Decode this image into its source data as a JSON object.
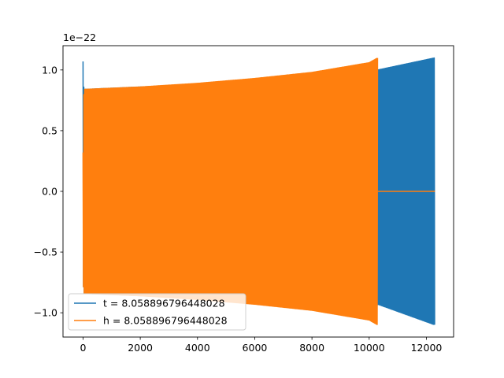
{
  "chart_data": {
    "type": "line",
    "title": "",
    "xlabel": "",
    "ylabel": "",
    "y_offset_label": "1e−22",
    "xlim": [
      -700,
      12950
    ],
    "ylim": [
      -1.2,
      1.2
    ],
    "xticks": [
      0,
      2000,
      4000,
      6000,
      8000,
      10000,
      12000
    ],
    "xtick_labels": [
      "0",
      "2000",
      "4000",
      "6000",
      "8000",
      "10000",
      "12000"
    ],
    "yticks": [
      -1.0,
      -0.5,
      0.0,
      0.5,
      1.0
    ],
    "ytick_labels": [
      "−1.0",
      "−0.5",
      "0.0",
      "0.5",
      "1.0"
    ],
    "grid": false,
    "legend_position": "lower-left",
    "series": [
      {
        "name": "t = 8.058896796448028",
        "color": "#1f77b4",
        "envelope": {
          "x": [
            0,
            30,
            2000,
            4000,
            6000,
            8000,
            10000,
            10300,
            12300
          ],
          "upper": [
            1.07,
            0.84,
            0.86,
            0.88,
            0.92,
            0.97,
            1.05,
            1.0,
            1.1
          ],
          "lower": [
            -0.74,
            -0.84,
            -0.86,
            -0.88,
            -0.92,
            -0.97,
            -1.05,
            -0.93,
            -1.1
          ]
        },
        "end_x": 12300
      },
      {
        "name": "h = 8.058896796448028",
        "color": "#ff7f0e",
        "envelope": {
          "x": [
            0,
            30,
            2000,
            4000,
            6000,
            8000,
            10000,
            10300
          ],
          "upper": [
            0.32,
            0.84,
            0.86,
            0.89,
            0.93,
            0.98,
            1.06,
            1.1
          ],
          "lower": [
            -0.74,
            -0.84,
            -0.86,
            -0.89,
            -0.93,
            -0.98,
            -1.06,
            -1.1
          ]
        },
        "flat_after": {
          "x": [
            10300,
            12300
          ],
          "y": 0.0
        }
      }
    ]
  }
}
